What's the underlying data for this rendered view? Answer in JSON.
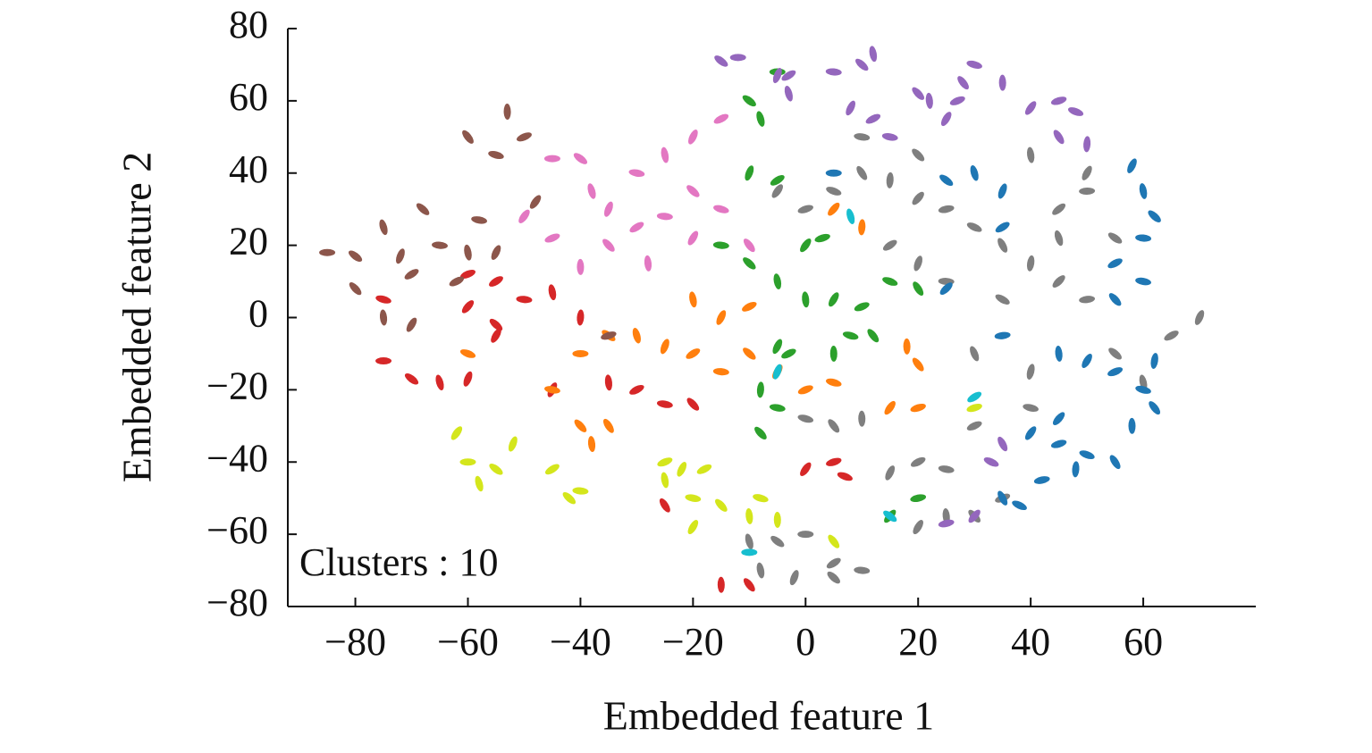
{
  "chart_data": {
    "type": "scatter",
    "xlabel": "Embedded feature 1",
    "ylabel": "Embedded feature 2",
    "annotation": "Clusters : 10",
    "xlim": [
      -92,
      80
    ],
    "ylim": [
      -80,
      80
    ],
    "xticks": [
      {
        "value": -80,
        "label": "−80"
      },
      {
        "value": -60,
        "label": "−60"
      },
      {
        "value": -40,
        "label": "−40"
      },
      {
        "value": -20,
        "label": "−20"
      },
      0,
      20,
      40,
      60
    ],
    "yticks": [
      {
        "value": -80,
        "label": "−80"
      },
      {
        "value": -60,
        "label": "−60"
      },
      {
        "value": -40,
        "label": "−40"
      },
      {
        "value": -20,
        "label": "−20"
      },
      0,
      20,
      40,
      60,
      80
    ],
    "series": [
      {
        "color": "#d62728",
        "x": [
          -75,
          -70,
          -65,
          -60,
          -55,
          -50,
          -55,
          -45,
          -45,
          -30,
          -25,
          -20,
          -35,
          -55,
          -60,
          -75,
          -10,
          -15,
          0,
          5,
          7,
          -25,
          -40,
          -60
        ],
        "y": [
          -12,
          -17,
          -18,
          -17,
          10,
          5,
          -2,
          7,
          -20,
          -20,
          -24,
          -24,
          -18,
          -5,
          12,
          5,
          -74,
          -74,
          -42,
          -40,
          -44,
          -52,
          0,
          3
        ]
      },
      {
        "color": "#ff7f0e",
        "x": [
          -40,
          -35,
          -30,
          -25,
          -20,
          -15,
          -10,
          -20,
          -15,
          -10,
          -45,
          -40,
          -38,
          -5,
          0,
          5,
          20,
          18,
          15,
          20,
          -60,
          -35,
          10,
          5
        ],
        "y": [
          -10,
          -5,
          -5,
          -8,
          -10,
          -15,
          -10,
          5,
          0,
          3,
          -20,
          -30,
          -35,
          -15,
          -20,
          -18,
          -13,
          -8,
          -25,
          -25,
          -10,
          -30,
          25,
          30
        ]
      },
      {
        "color": "#8c564b",
        "x": [
          -85,
          -80,
          -75,
          -72,
          -70,
          -65,
          -68,
          -60,
          -55,
          -62,
          -58,
          -80,
          -75,
          -70,
          -50,
          -55,
          -60,
          -53,
          -48,
          -35
        ],
        "y": [
          18,
          17,
          25,
          17,
          12,
          20,
          30,
          18,
          18,
          10,
          27,
          8,
          0,
          -2,
          50,
          45,
          50,
          57,
          32,
          -5
        ]
      },
      {
        "color": "#e377c2",
        "x": [
          -45,
          -40,
          -38,
          -35,
          -30,
          -25,
          -20,
          -25,
          -20,
          -15,
          -30,
          -35,
          -28,
          -20,
          -45,
          -15,
          -10,
          -40,
          -50
        ],
        "y": [
          44,
          44,
          35,
          30,
          25,
          28,
          35,
          45,
          50,
          55,
          40,
          20,
          15,
          22,
          22,
          30,
          20,
          14,
          28
        ]
      },
      {
        "color": "#2ca02c",
        "x": [
          -5,
          -10,
          -8,
          -10,
          -5,
          -15,
          -10,
          -5,
          -5,
          -3,
          -5,
          -8,
          0,
          5,
          10,
          8,
          12,
          5,
          0,
          3,
          15,
          20,
          -8,
          15,
          20
        ],
        "y": [
          68,
          60,
          55,
          40,
          38,
          20,
          15,
          10,
          -8,
          -10,
          -25,
          -32,
          5,
          5,
          3,
          -5,
          -5,
          -10,
          20,
          22,
          10,
          8,
          -20,
          -55,
          -50
        ]
      },
      {
        "color": "#7f7f7f",
        "x": [
          0,
          -5,
          -10,
          -2,
          5,
          10,
          5,
          -8,
          15,
          20,
          25,
          30,
          25,
          20,
          35,
          0,
          5,
          10,
          -5,
          0,
          5,
          10,
          15,
          20,
          25,
          30,
          35,
          40,
          45,
          50,
          35,
          30,
          40,
          45,
          50,
          55,
          45,
          20,
          15,
          25,
          55,
          60,
          70,
          65,
          10,
          20,
          40,
          50,
          30,
          40
        ],
        "y": [
          -60,
          -62,
          -62,
          -72,
          -68,
          -70,
          -72,
          -70,
          -43,
          -40,
          -42,
          -55,
          -55,
          -58,
          -50,
          -28,
          -30,
          -28,
          35,
          30,
          35,
          40,
          38,
          33,
          30,
          25,
          20,
          15,
          10,
          5,
          5,
          -10,
          -15,
          30,
          35,
          22,
          22,
          15,
          20,
          10,
          -10,
          -18,
          0,
          -5,
          50,
          45,
          45,
          40,
          -30,
          -25
        ]
      },
      {
        "color": "#9467bd",
        "x": [
          -12,
          -15,
          -3,
          -5,
          -3,
          5,
          10,
          12,
          8,
          12,
          15,
          20,
          22,
          25,
          27,
          30,
          28,
          35,
          40,
          45,
          48,
          45,
          50,
          30,
          25,
          33,
          35
        ],
        "y": [
          72,
          71,
          62,
          67,
          67,
          68,
          70,
          73,
          58,
          55,
          50,
          62,
          60,
          55,
          60,
          70,
          65,
          65,
          58,
          60,
          57,
          50,
          48,
          -55,
          -57,
          -40,
          -35
        ]
      },
      {
        "color": "#1f77b4",
        "x": [
          5,
          25,
          30,
          35,
          35,
          60,
          62,
          60,
          58,
          55,
          60,
          55,
          45,
          50,
          55,
          60,
          62,
          58,
          40,
          45,
          50,
          55,
          48,
          45,
          42,
          38,
          35,
          62,
          25,
          35
        ],
        "y": [
          40,
          38,
          40,
          35,
          25,
          22,
          28,
          35,
          42,
          15,
          10,
          5,
          -10,
          -12,
          -15,
          -20,
          -25,
          -30,
          -32,
          -35,
          -38,
          -40,
          -42,
          -28,
          -45,
          -52,
          -50,
          -12,
          8,
          -5
        ]
      },
      {
        "color": "#d4e61c",
        "x": [
          -60,
          -55,
          -58,
          -52,
          -45,
          -40,
          -42,
          -25,
          -22,
          -18,
          -20,
          -15,
          -10,
          -20,
          -25,
          -8,
          5,
          -5,
          -62,
          30
        ],
        "y": [
          -40,
          -42,
          -46,
          -35,
          -42,
          -48,
          -50,
          -45,
          -42,
          -42,
          -50,
          -52,
          -55,
          -58,
          -40,
          -50,
          -62,
          -56,
          -32,
          -25
        ]
      },
      {
        "color": "#17becf",
        "x": [
          -10,
          15,
          8,
          -5,
          30
        ],
        "y": [
          -65,
          -55,
          28,
          -15,
          -22
        ]
      }
    ]
  }
}
